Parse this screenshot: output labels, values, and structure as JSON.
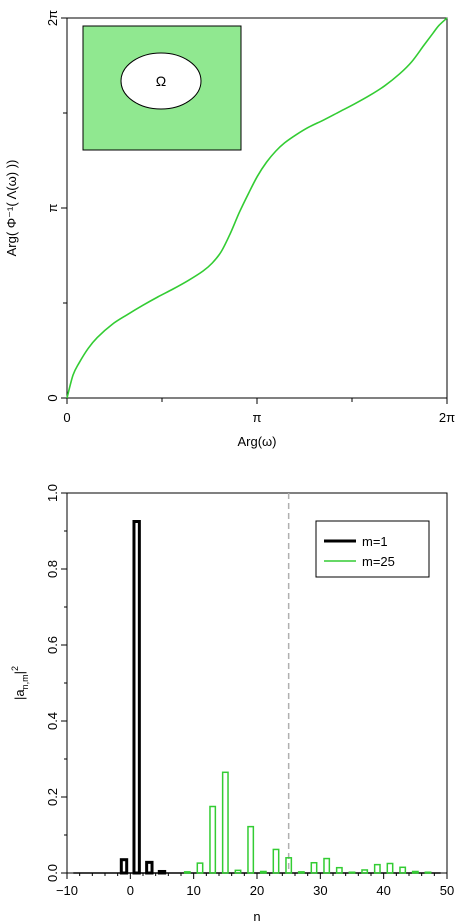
{
  "chart_data": [
    {
      "type": "line",
      "xlabel": "Arg(ω)",
      "ylabel": "Arg(  Φ⁻¹(  Λ(ω)  ))",
      "xlim": [
        0,
        6.2832
      ],
      "ylim": [
        0,
        6.2832
      ],
      "x_ticks": [
        {
          "value": 0,
          "label": "0"
        },
        {
          "value": 3.1416,
          "label": "π"
        },
        {
          "value": 6.2832,
          "label": "2π"
        }
      ],
      "y_ticks": [
        {
          "value": 0,
          "label": "0"
        },
        {
          "value": 3.1416,
          "label": "π"
        },
        {
          "value": 6.2832,
          "label": "2π"
        }
      ],
      "y_minor_ticks": [
        1.5708,
        4.7124
      ],
      "x_minor_ticks": [
        1.5708,
        4.7124
      ],
      "grid": false,
      "series": [
        {
          "color": "#33cc33",
          "x": [
            0,
            0.1,
            0.2,
            0.35,
            0.5,
            0.75,
            1.0,
            1.25,
            1.5,
            1.75,
            2.0,
            2.25,
            2.4,
            2.55,
            2.7,
            2.85,
            3.0,
            3.15,
            3.3,
            3.45,
            3.6,
            3.8,
            4.0,
            4.25,
            4.5,
            4.75,
            5.0,
            5.25,
            5.5,
            5.7,
            5.9,
            6.05,
            6.15,
            6.2832
          ],
          "y": [
            0,
            0.38,
            0.58,
            0.82,
            1.0,
            1.22,
            1.38,
            1.53,
            1.67,
            1.8,
            1.94,
            2.1,
            2.23,
            2.42,
            2.72,
            3.07,
            3.38,
            3.67,
            3.9,
            4.08,
            4.22,
            4.36,
            4.48,
            4.6,
            4.73,
            4.86,
            5.0,
            5.16,
            5.36,
            5.56,
            5.83,
            6.03,
            6.16,
            6.2832
          ]
        }
      ],
      "inset": {
        "region_color": "#90e890",
        "domain_color": "#ffffff",
        "label": "Ω"
      }
    },
    {
      "type": "bar",
      "xlabel": "n",
      "ylabel": "|a",
      "ylabel_sub": "n,m",
      "ylabel_sup": "2",
      "xlim": [
        -10,
        50
      ],
      "ylim": [
        0,
        1.0
      ],
      "x_ticks": [
        -10,
        0,
        10,
        20,
        30,
        40,
        50
      ],
      "y_ticks": [
        {
          "value": 0,
          "label": "0.0"
        },
        {
          "value": 0.2,
          "label": "0.2"
        },
        {
          "value": 0.4,
          "label": "0.4"
        },
        {
          "value": 0.6,
          "label": "0.6"
        },
        {
          "value": 0.8,
          "label": "0.8"
        },
        {
          "value": 1.0,
          "label": "1.0"
        }
      ],
      "vline": {
        "x": 25,
        "color": "#b0b0b0",
        "style": "dashed"
      },
      "legend_position": "top-right",
      "grid": false,
      "series": [
        {
          "name": "m=1",
          "color": "#000000",
          "x": [
            -1,
            1,
            3,
            5
          ],
          "values": [
            0.035,
            0.925,
            0.028,
            0.004
          ]
        },
        {
          "name": "m=25",
          "color": "#33cc33",
          "x": [
            9,
            11,
            13,
            15,
            17,
            19,
            21,
            23,
            25,
            27,
            29,
            31,
            33,
            35,
            37,
            39,
            41,
            43,
            45,
            47
          ],
          "values": [
            0.003,
            0.026,
            0.175,
            0.265,
            0.007,
            0.122,
            0.004,
            0.062,
            0.04,
            0.003,
            0.027,
            0.038,
            0.014,
            0.002,
            0.008,
            0.022,
            0.025,
            0.015,
            0.004,
            0.002
          ]
        }
      ]
    }
  ]
}
